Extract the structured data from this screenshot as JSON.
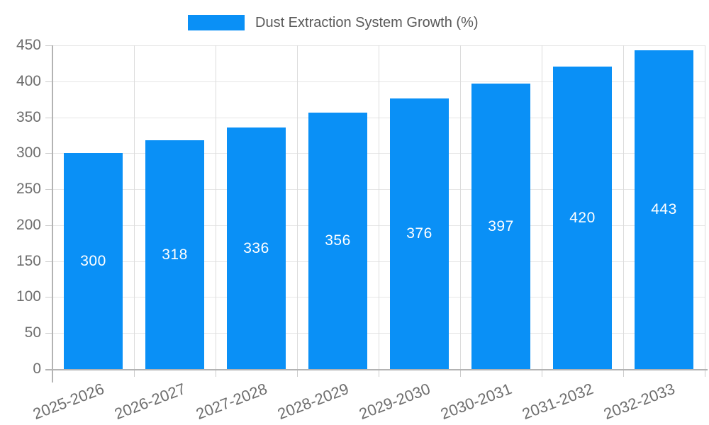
{
  "chart_data": {
    "type": "bar",
    "title": "Dust Extraction System Growth (%)",
    "legend": {
      "label": "Dust Extraction System Growth (%)",
      "position": "top"
    },
    "categories": [
      "2025-2026",
      "2026-2027",
      "2027-2028",
      "2028-2029",
      "2029-2030",
      "2030-2031",
      "2031-2032",
      "2032-2033"
    ],
    "values": [
      300,
      318,
      336,
      356,
      376,
      397,
      420,
      443
    ],
    "value_labels_visible": true,
    "xlabel": "",
    "ylabel": "",
    "ylim": [
      0,
      450
    ],
    "ytick_step": 50,
    "yticks": [
      0,
      50,
      100,
      150,
      200,
      250,
      300,
      350,
      400,
      450
    ],
    "grid": "on",
    "colors": {
      "bar": "#0a90f6",
      "value_label": "#ffffff",
      "legend_text": "#595959",
      "axis_text": "#6e6e6e",
      "gridline": "#e6e6e6",
      "axis_line": "#b3b3b3"
    }
  }
}
